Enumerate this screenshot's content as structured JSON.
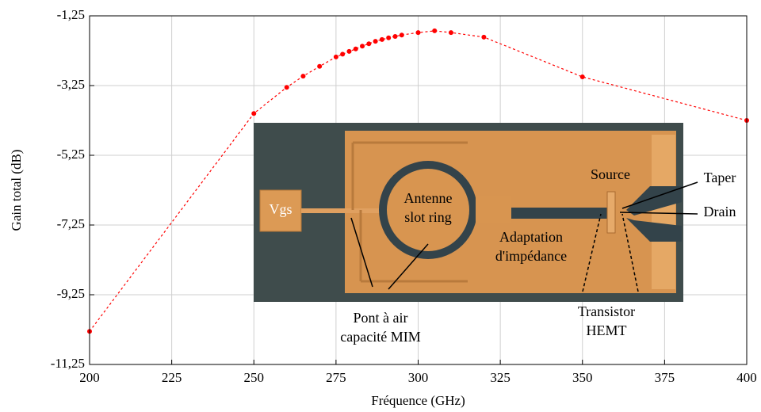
{
  "chart_data": {
    "type": "line",
    "x_label": "Fréquence (GHz)",
    "y_label": "Gain total (dB)",
    "x": [
      200,
      250,
      260,
      265,
      270,
      275,
      277,
      279,
      281,
      283,
      285,
      287,
      289,
      291,
      293,
      295,
      300,
      305,
      310,
      320,
      350,
      400
    ],
    "series": [
      {
        "name": "Gain total",
        "color": "#ff0000",
        "values": [
          -10.3,
          -4.05,
          -3.3,
          -2.98,
          -2.7,
          -2.43,
          -2.35,
          -2.27,
          -2.2,
          -2.12,
          -2.05,
          -1.98,
          -1.93,
          -1.88,
          -1.84,
          -1.8,
          -1.73,
          -1.68,
          -1.73,
          -1.86,
          -3.0,
          -4.25
        ]
      }
    ],
    "xlim": [
      200,
      400
    ],
    "xticks": [
      200,
      225,
      250,
      275,
      300,
      325,
      350,
      375,
      400
    ],
    "ylim": [
      -11.25,
      -1.25
    ],
    "yticks": [
      {
        "value": -11.25,
        "label": "-11,25"
      },
      {
        "value": -9.25,
        "label": "-9,25"
      },
      {
        "value": -7.25,
        "label": "-7,25"
      },
      {
        "value": -5.25,
        "label": "-5,25"
      },
      {
        "value": -3.25,
        "label": "-3,25"
      },
      {
        "value": -1.25,
        "label": "-1,25"
      }
    ],
    "grid": true,
    "annotations": [
      {
        "text": [
          "Vgs"
        ]
      },
      {
        "text": [
          "Antenne",
          "slot ring"
        ]
      },
      {
        "text": [
          "Source"
        ]
      },
      {
        "text": [
          "Taper"
        ]
      },
      {
        "text": [
          "Drain"
        ]
      },
      {
        "text": [
          "Adaptation",
          "d'impédance"
        ]
      },
      {
        "text": [
          "Pont à air",
          "capacité MIM"
        ]
      },
      {
        "text": [
          "Transistor",
          "HEMT"
        ]
      }
    ]
  }
}
